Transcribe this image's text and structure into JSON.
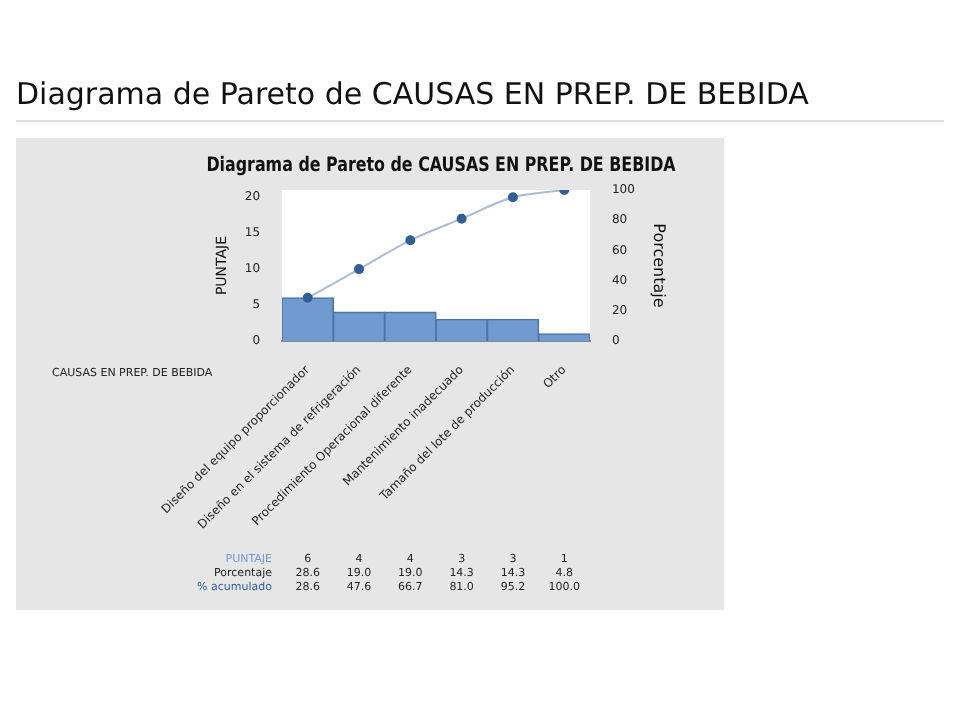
{
  "chart_data": {
    "type": "bar",
    "title": "Diagrama de Pareto de CAUSAS EN PREP. DE BEBIDA",
    "subtitle": "Diagrama de Pareto de CAUSAS EN PREP. DE BEBIDA",
    "ylabel": "PUNTAJE",
    "y2label": "Porcentaje",
    "categories": [
      "Diseño del equipo proporcionador",
      "Diseño en el sistema de refrigeración",
      "Procedimiento Operacional diferente",
      "Mantenimiento inadecuado",
      "Tamaño del lote de producción",
      "Otro"
    ],
    "series": [
      {
        "name": "PUNTAJE",
        "color": "#6f9bd1",
        "values": [
          6,
          4,
          4,
          3,
          3,
          1
        ],
        "value_labels": [
          "6",
          "4",
          "4",
          "3",
          "3",
          "1"
        ]
      },
      {
        "name": "% acumulado",
        "type": "line",
        "axis": "y2",
        "color": "#2f5f96",
        "values": [
          28.6,
          47.6,
          66.7,
          81.0,
          95.2,
          100.0
        ],
        "value_labels": [
          "28.6",
          "47.6",
          "66.7",
          "81.0",
          "95.2",
          "100.0"
        ]
      }
    ],
    "annotations": [
      "CAUSAS EN PREP. DE BEBIDA",
      "Porcentaje",
      "28.6",
      "19.0",
      "19.0",
      "14.3",
      "14.3",
      "4.8"
    ],
    "ylim": [
      0,
      21
    ],
    "yticks": [
      0,
      5,
      10,
      15,
      20
    ],
    "y2lim": [
      0,
      100
    ],
    "y2ticks": [
      0,
      20,
      40,
      60,
      80,
      100
    ],
    "grid": false,
    "legend": false,
    "marker": "circle",
    "line_style": "solid",
    "data_labels": true
  }
}
